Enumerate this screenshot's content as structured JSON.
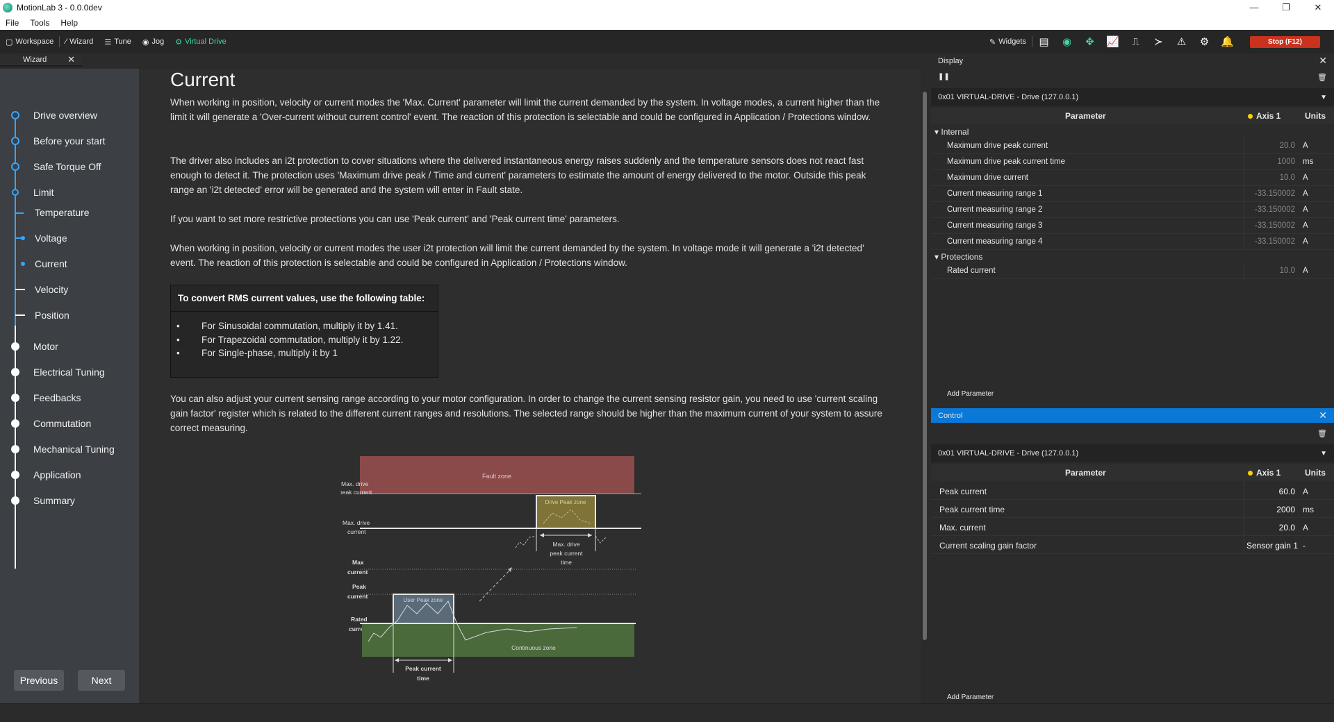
{
  "window": {
    "title": "MotionLab 3 - 0.0.0dev",
    "minimize": "—",
    "maximize": "❐",
    "close": "✕"
  },
  "menu": [
    "File",
    "Tools",
    "Help"
  ],
  "toolbar": {
    "workspace": "Workspace",
    "wizard": "Wizard",
    "tune": "Tune",
    "jog": "Jog",
    "virtual_drive": "Virtual Drive",
    "widgets": "Widgets",
    "stop": "Stop (F12)",
    "accent_color": "#3fd6a8",
    "stop_color": "#c8321f"
  },
  "wizard_tab": {
    "label": "Wizard"
  },
  "steps": [
    {
      "label": "Drive overview"
    },
    {
      "label": "Before your start"
    },
    {
      "label": "Safe Torque Off"
    },
    {
      "label": "Limit"
    },
    {
      "label": "Temperature"
    },
    {
      "label": "Voltage"
    },
    {
      "label": "Current"
    },
    {
      "label": "Velocity"
    },
    {
      "label": "Position"
    },
    {
      "label": "Motor"
    },
    {
      "label": "Electrical Tuning"
    },
    {
      "label": "Feedbacks"
    },
    {
      "label": "Commutation"
    },
    {
      "label": "Mechanical Tuning"
    },
    {
      "label": "Application"
    },
    {
      "label": "Summary"
    }
  ],
  "nav": {
    "previous": "Previous",
    "next": "Next"
  },
  "content": {
    "title": "Current",
    "p1": "When working in position, velocity or current modes the 'Max. Current' parameter will limit the current demanded by the system. In voltage modes, a current higher than the limit it will generate a 'Over-current without current control' event. The reaction of this protection is selectable and could be configured in Application / Protections window.",
    "p2": "The driver also includes an i2t protection to cover situations where the delivered instantaneous energy raises suddenly and the temperature sensors does not react fast enough to detect it. The protection uses 'Maximum drive peak / Time and current' parameters to estimate the amount of energy delivered to the motor. Outside this peak range an 'i2t detected' error will be generated and the system will enter in Fault state.",
    "p3": "If you want to set more restrictive protections you can use 'Peak current' and 'Peak current time' parameters.",
    "p4": "When working in position, velocity or current modes the user i2t protection will limit the current demanded by the system. In voltage mode it will generate a 'i2t detected' event. The reaction of this protection is selectable and could be configured in Application / Protections window.",
    "rms_title": "To convert RMS current values, use the following table:",
    "rms_items": [
      "For Sinusoidal commutation, multiply it by 1.41.",
      "For Trapezoidal commutation, multiply it by 1.22.",
      "For Single-phase, multiply it by 1"
    ],
    "p5": "You can also adjust your current sensing range according to your motor configuration. In order to change the current sensing resistor gain, you need to use 'current scaling gain factor' register which is related to the different current ranges and resolutions. The selected range should be higher than the maximum current of your system to assure correct measuring."
  },
  "diagram": {
    "fault_zone": "Fault zone",
    "drive_peak_zone": "Drive Peak zone",
    "user_peak_zone": "User Peak zone",
    "continuous_zone": "Continuous zone",
    "max_drive_peak": [
      "Max. drive",
      "peak current"
    ],
    "max_drive_current": [
      "Max. drive",
      "current"
    ],
    "max_current": [
      "Max",
      "current"
    ],
    "peak_current": [
      "Peak",
      "current"
    ],
    "rated_current": [
      "Rated",
      "current"
    ],
    "max_drive_peak_time": [
      "Max. drive",
      "peak current",
      "time"
    ],
    "peak_current_time": [
      "Peak current",
      "time"
    ],
    "colors": {
      "fault": "#8a4a4a",
      "drive_peak": "#7f7338",
      "user_peak": "#5a6a78",
      "continuous": "#4a6a3c"
    }
  },
  "display_panel": {
    "title": "Display",
    "drive": "0x01  VIRTUAL-DRIVE - Drive (127.0.0.1)",
    "col_param": "Parameter",
    "col_axis": "Axis 1",
    "col_units": "Units",
    "groups": [
      {
        "name": "Internal",
        "rows": [
          {
            "name": "Maximum drive peak current",
            "value": "20.0",
            "unit": "A"
          },
          {
            "name": "Maximum drive peak current time",
            "value": "1000",
            "unit": "ms"
          },
          {
            "name": "Maximum drive current",
            "value": "10.0",
            "unit": "A"
          },
          {
            "name": "Current measuring range 1",
            "value": "-33.150002",
            "unit": "A"
          },
          {
            "name": "Current measuring range 2",
            "value": "-33.150002",
            "unit": "A"
          },
          {
            "name": "Current measuring range 3",
            "value": "-33.150002",
            "unit": "A"
          },
          {
            "name": "Current measuring range 4",
            "value": "-33.150002",
            "unit": "A"
          }
        ]
      },
      {
        "name": "Protections",
        "rows": [
          {
            "name": "Rated current",
            "value": "10.0",
            "unit": "A"
          }
        ]
      }
    ],
    "add_parameter": "Add Parameter"
  },
  "control_panel": {
    "title": "Control",
    "header_color": "#0a78d7",
    "drive": "0x01  VIRTUAL-DRIVE - Drive (127.0.0.1)",
    "col_param": "Parameter",
    "col_axis": "Axis 1",
    "col_units": "Units",
    "rows": [
      {
        "name": "Peak current",
        "value": "60.0",
        "unit": "A"
      },
      {
        "name": "Peak current time",
        "value": "2000",
        "unit": "ms"
      },
      {
        "name": "Max. current",
        "value": "20.0",
        "unit": "A"
      },
      {
        "name": "Current scaling gain factor",
        "value": "Sensor gain 1",
        "unit": "-"
      }
    ],
    "add_parameter": "Add Parameter"
  }
}
